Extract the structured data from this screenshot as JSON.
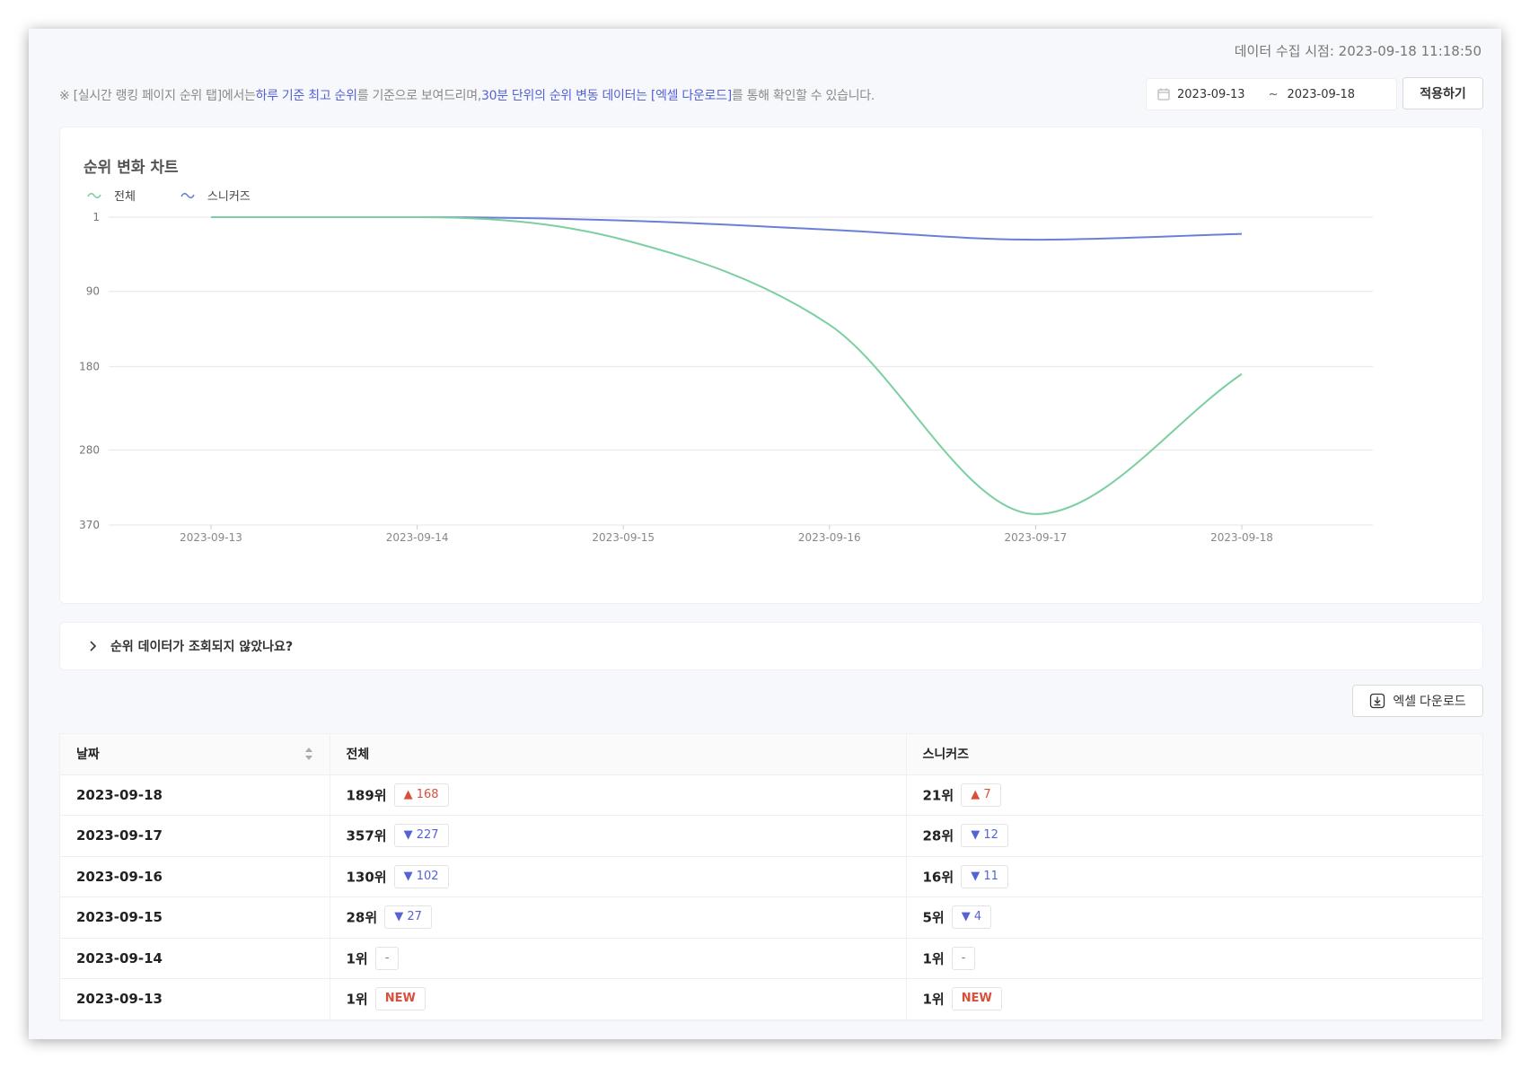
{
  "collected_at": "데이터 수집 시점: 2023-09-18 11:18:50",
  "notice": {
    "prefix": "※ [실시간 랭킹 페이지 순위 탭]에서는",
    "hl1": "하루 기준 최고 순위",
    "mid": "를 기준으로 보여드리며,",
    "hl2": "30분 단위의 순위 변동 데이터는 [엑셀 다운로드]",
    "suffix": "를 통해 확인할 수 있습니다."
  },
  "date_range": {
    "start": "2023-09-13",
    "separator": "~",
    "end": "2023-09-18"
  },
  "apply_label": "적용하기",
  "chart_title": "순위 변화 차트",
  "faq_label": "순위 데이터가 조회되지 않았나요?",
  "excel_label": "엑셀 다운로드",
  "colors": {
    "total": "#7ccfa0",
    "sneakers": "#6b7fd8",
    "accent": "#5562d6",
    "up": "#d9503a"
  },
  "chart_data": {
    "type": "line",
    "title": "순위 변화 차트",
    "x": [
      "2023-09-13",
      "2023-09-14",
      "2023-09-15",
      "2023-09-16",
      "2023-09-17",
      "2023-09-18"
    ],
    "y_ticks": [
      "1",
      "90",
      "180",
      "280",
      "370"
    ],
    "ylim": [
      1,
      370
    ],
    "y_inverted": true,
    "legend_position": "top-left",
    "grid": true,
    "series": [
      {
        "name": "전체",
        "color": "#7ccfa0",
        "values": [
          1,
          1,
          28,
          130,
          357,
          189
        ]
      },
      {
        "name": "스니커즈",
        "color": "#6b7fd8",
        "values": [
          1,
          1,
          5,
          16,
          28,
          21
        ]
      }
    ]
  },
  "table": {
    "headers": [
      "날짜",
      "전체",
      "스니커즈"
    ],
    "rows": [
      {
        "date": "2023-09-18",
        "total_rank": "189위",
        "total_badge": "▲ 168",
        "total_dir": "up",
        "sneaker_rank": "21위",
        "sneaker_badge": "▲ 7",
        "sneaker_dir": "up"
      },
      {
        "date": "2023-09-17",
        "total_rank": "357위",
        "total_badge": "▼ 227",
        "total_dir": "down",
        "sneaker_rank": "28위",
        "sneaker_badge": "▼ 12",
        "sneaker_dir": "down"
      },
      {
        "date": "2023-09-16",
        "total_rank": "130위",
        "total_badge": "▼ 102",
        "total_dir": "down",
        "sneaker_rank": "16위",
        "sneaker_badge": "▼ 11",
        "sneaker_dir": "down"
      },
      {
        "date": "2023-09-15",
        "total_rank": "28위",
        "total_badge": "▼ 27",
        "total_dir": "down",
        "sneaker_rank": "5위",
        "sneaker_badge": "▼ 4",
        "sneaker_dir": "down"
      },
      {
        "date": "2023-09-14",
        "total_rank": "1위",
        "total_badge": "-",
        "total_dir": "same",
        "sneaker_rank": "1위",
        "sneaker_badge": "-",
        "sneaker_dir": "same"
      },
      {
        "date": "2023-09-13",
        "total_rank": "1위",
        "total_badge": "NEW",
        "total_dir": "new",
        "sneaker_rank": "1위",
        "sneaker_badge": "NEW",
        "sneaker_dir": "new"
      }
    ]
  }
}
